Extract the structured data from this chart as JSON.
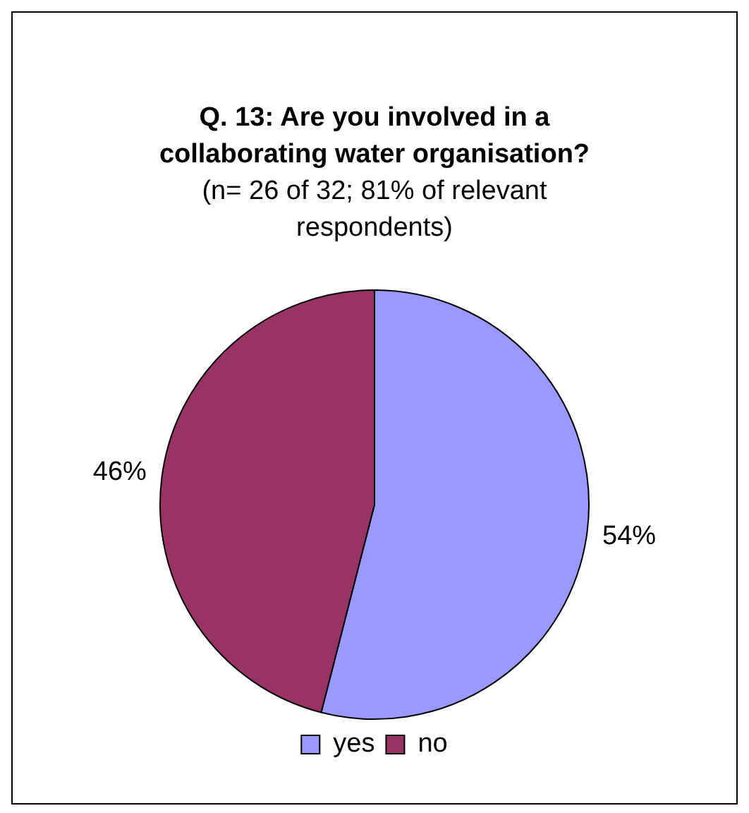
{
  "chart_data": {
    "type": "pie",
    "title": "Q. 13: Are you involved in a collaborating water organisation?",
    "subtitle": "(n= 26 of 32; 81% of relevant respondents)",
    "categories": [
      "yes",
      "no"
    ],
    "values": [
      54,
      46
    ],
    "colors": [
      "#9999ff",
      "#993366"
    ],
    "value_labels": [
      "54%",
      "46%"
    ],
    "legend": "bottom"
  }
}
